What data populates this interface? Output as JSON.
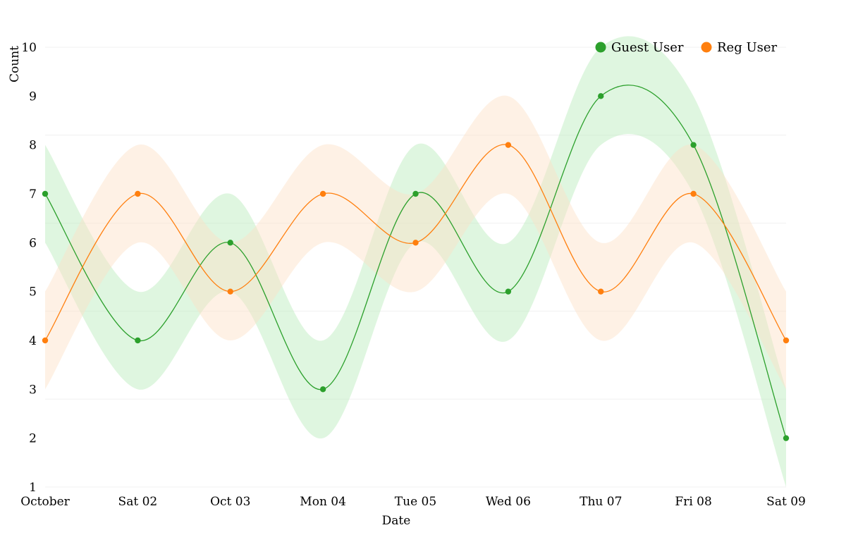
{
  "chart_data": {
    "type": "line",
    "x": [
      "October",
      "Sat 02",
      "Oct 03",
      "Mon 04",
      "Tue 05",
      "Wed 06",
      "Thu 07",
      "Fri 08",
      "Sat 09"
    ],
    "xlabel": "Date",
    "ylabel": "Count",
    "ylim": [
      1,
      10
    ],
    "yticks": [
      1,
      2,
      3,
      4,
      5,
      6,
      7,
      8,
      9,
      10
    ],
    "grid": true,
    "legend": "top-right",
    "band": "value ± 1",
    "series": [
      {
        "name": "Guest User",
        "color": "#2ca02c",
        "band_color": "#b9ecbb",
        "values": [
          7,
          4,
          6,
          3,
          7,
          5,
          9,
          8,
          2
        ]
      },
      {
        "name": "Reg User",
        "color": "#ff7f0e",
        "band_color": "#fde0c6",
        "values": [
          4,
          7,
          5,
          7,
          6,
          8,
          5,
          7,
          4
        ]
      }
    ]
  }
}
